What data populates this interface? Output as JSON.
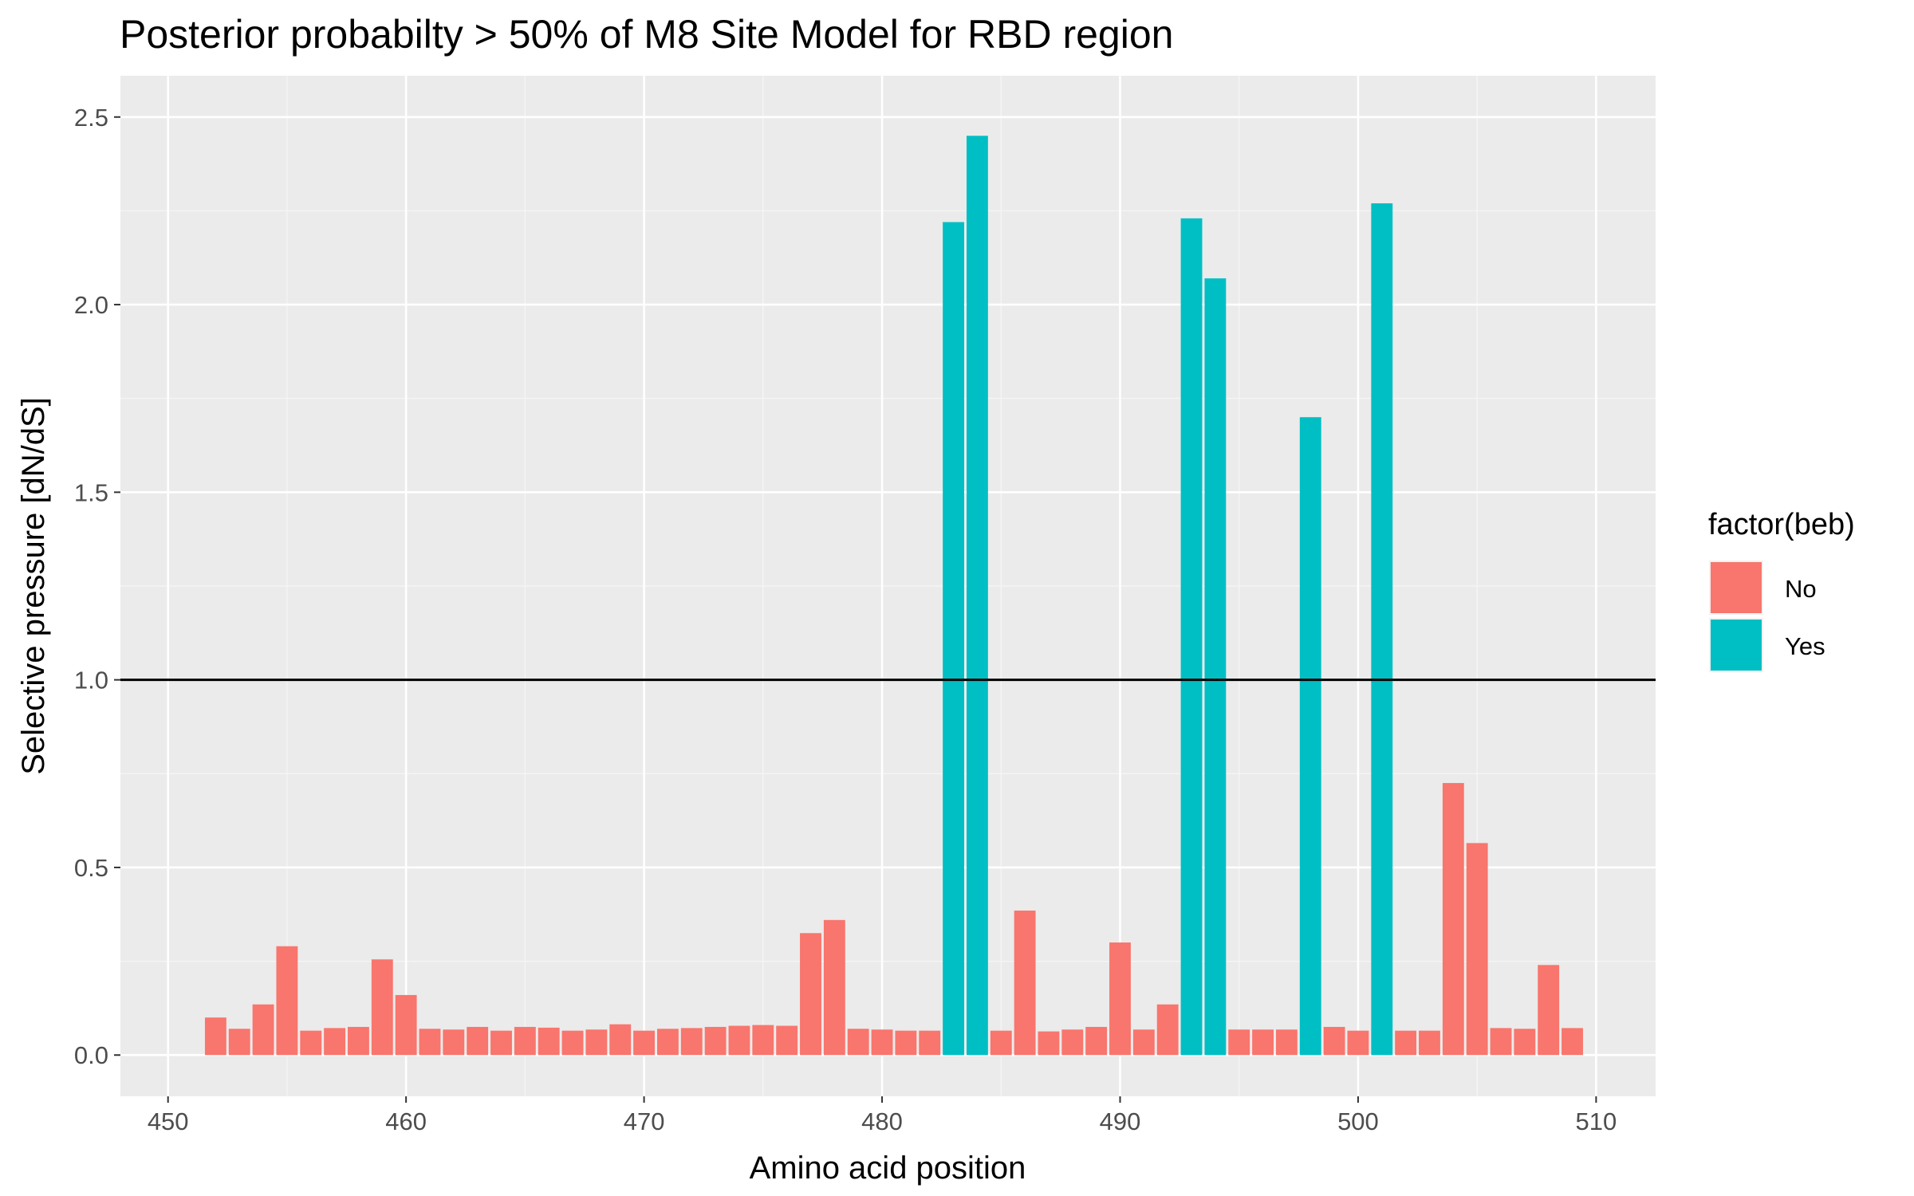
{
  "chart_data": {
    "type": "bar",
    "title": "Posterior probabilty > 50% of M8 Site Model for RBD region",
    "xlabel": "Amino acid position",
    "ylabel": "Selective pressure [dN/dS]",
    "xlim": [
      448,
      512.5
    ],
    "ylim": [
      -0.11,
      2.61
    ],
    "x_ticks": [
      450,
      460,
      470,
      480,
      490,
      500,
      510
    ],
    "y_ticks": [
      0.0,
      0.5,
      1.0,
      1.5,
      2.0,
      2.5
    ],
    "x_tick_labels": [
      "450",
      "460",
      "470",
      "480",
      "490",
      "500",
      "510"
    ],
    "y_tick_labels": [
      "0.0",
      "0.5",
      "1.0",
      "1.5",
      "2.0",
      "2.5"
    ],
    "reference_line": 1.0,
    "grid": true,
    "legend": {
      "title": "factor(beb)",
      "placement": "right",
      "entries": [
        {
          "label": "No",
          "color": "#F8766D"
        },
        {
          "label": "Yes",
          "color": "#00BFC4"
        }
      ]
    },
    "colors": {
      "No": "#F8766D",
      "Yes": "#00BFC4",
      "panel": "#EBEBEB",
      "reference_line": "#000000"
    },
    "x": [
      452,
      453,
      454,
      455,
      456,
      457,
      458,
      459,
      460,
      461,
      462,
      463,
      464,
      465,
      466,
      467,
      468,
      469,
      470,
      471,
      472,
      473,
      474,
      475,
      476,
      477,
      478,
      479,
      480,
      481,
      482,
      483,
      484,
      485,
      486,
      487,
      488,
      489,
      490,
      491,
      492,
      493,
      494,
      495,
      496,
      497,
      498,
      499,
      500,
      501,
      502,
      503,
      504,
      505,
      506,
      507,
      508,
      509
    ],
    "values": [
      0.1,
      0.07,
      0.135,
      0.29,
      0.065,
      0.072,
      0.075,
      0.255,
      0.16,
      0.07,
      0.068,
      0.075,
      0.065,
      0.075,
      0.073,
      0.065,
      0.068,
      0.082,
      0.065,
      0.07,
      0.072,
      0.075,
      0.078,
      0.08,
      0.078,
      0.325,
      0.36,
      0.07,
      0.068,
      0.065,
      0.065,
      2.22,
      2.45,
      0.065,
      0.385,
      0.063,
      0.068,
      0.075,
      0.3,
      0.068,
      0.135,
      2.23,
      2.07,
      0.068,
      0.068,
      0.068,
      1.7,
      0.075,
      0.065,
      2.27,
      0.065,
      0.065,
      0.725,
      0.565,
      0.072,
      0.07,
      0.24,
      0.072
    ],
    "beb": [
      "No",
      "No",
      "No",
      "No",
      "No",
      "No",
      "No",
      "No",
      "No",
      "No",
      "No",
      "No",
      "No",
      "No",
      "No",
      "No",
      "No",
      "No",
      "No",
      "No",
      "No",
      "No",
      "No",
      "No",
      "No",
      "No",
      "No",
      "No",
      "No",
      "No",
      "No",
      "Yes",
      "Yes",
      "No",
      "No",
      "No",
      "No",
      "No",
      "No",
      "No",
      "No",
      "Yes",
      "Yes",
      "No",
      "No",
      "No",
      "Yes",
      "No",
      "No",
      "Yes",
      "No",
      "No",
      "No",
      "No",
      "No",
      "No",
      "No",
      "No"
    ]
  }
}
